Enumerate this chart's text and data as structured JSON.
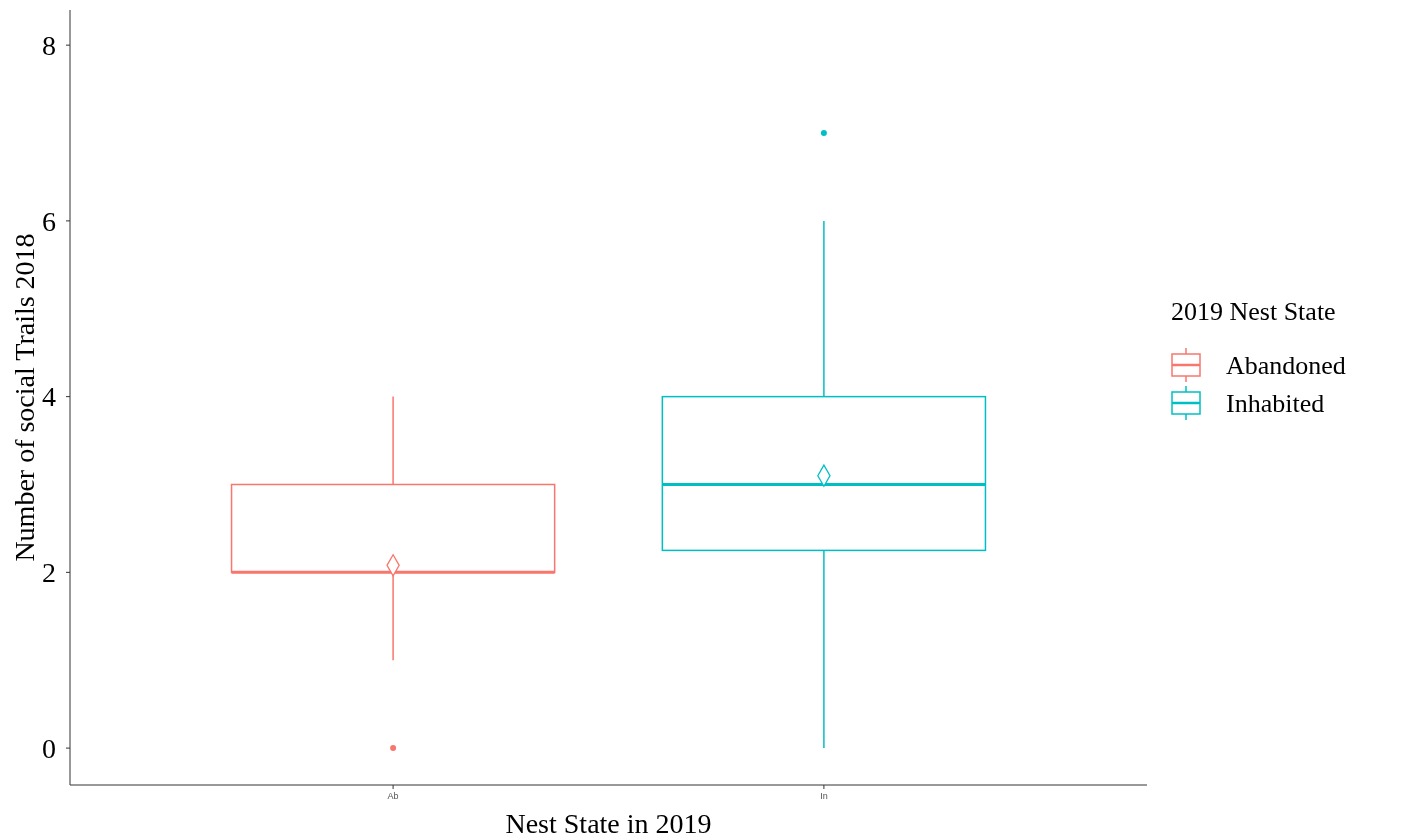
{
  "chart_data": {
    "type": "box",
    "xlabel": "Nest State in 2019",
    "ylabel": "Number of social Trails 2018",
    "legend_title": "2019 Nest State",
    "categories": [
      "Ab",
      "In"
    ],
    "ylim": [
      -0.42,
      8.4
    ],
    "yticks": [
      0,
      2,
      4,
      6,
      8
    ],
    "grid": false,
    "legend": "right",
    "marker": "diamond",
    "series": [
      {
        "name": "Abandoned",
        "color": "#f8766d",
        "boxes": [
          {
            "low": 1,
            "q1": 2,
            "median": 2,
            "q3": 3,
            "high": 4,
            "mean": 2.08,
            "outliers": [
              0
            ]
          },
          null
        ]
      },
      {
        "name": "Inhabited",
        "color": "#00bfc4",
        "boxes": [
          null,
          {
            "low": 0,
            "q1": 2.25,
            "median": 3,
            "q3": 4,
            "high": 6,
            "mean": 3.1,
            "outliers": [
              7
            ]
          }
        ]
      }
    ]
  }
}
